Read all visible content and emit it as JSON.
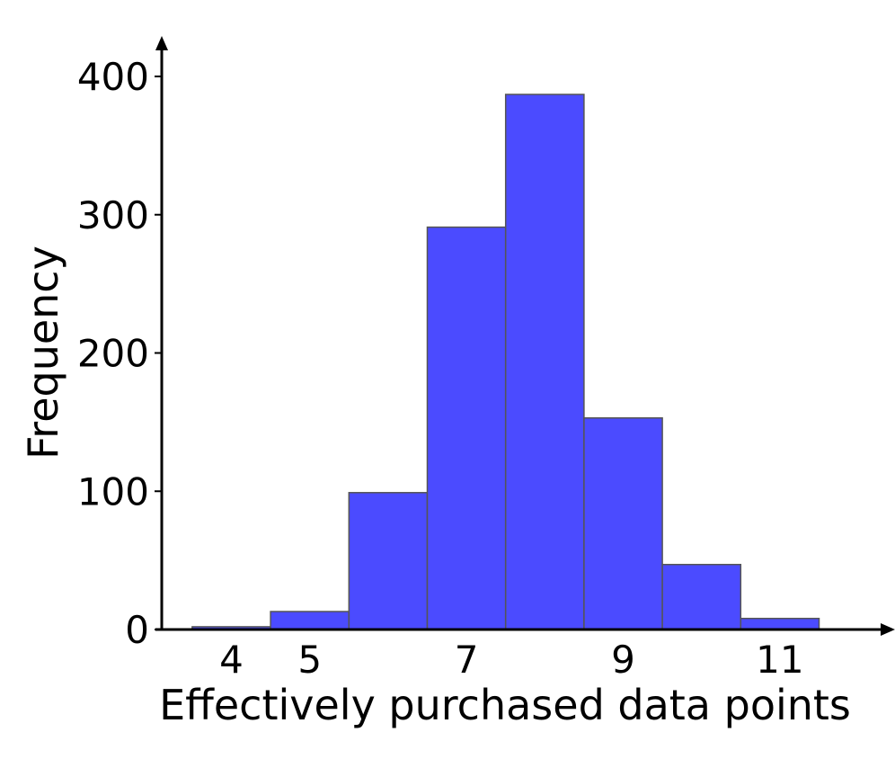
{
  "chart_data": {
    "type": "bar",
    "title": "",
    "xlabel": "Effectively purchased data points",
    "ylabel": "Frequency",
    "bins": [
      {
        "x": 4,
        "value": 2
      },
      {
        "x": 5,
        "value": 13
      },
      {
        "x": 6,
        "value": 99
      },
      {
        "x": 7,
        "value": 291
      },
      {
        "x": 8,
        "value": 387
      },
      {
        "x": 9,
        "value": 153
      },
      {
        "x": 10,
        "value": 47
      },
      {
        "x": 11,
        "value": 8
      }
    ],
    "x_ticks": [
      4,
      5,
      7,
      9,
      11
    ],
    "y_ticks": [
      0,
      100,
      200,
      300,
      400
    ],
    "xlim": [
      3,
      12.5
    ],
    "ylim": [
      0,
      400
    ],
    "grid": false,
    "bar_color": "#4b4bff",
    "bar_edge_color": "#555555"
  }
}
